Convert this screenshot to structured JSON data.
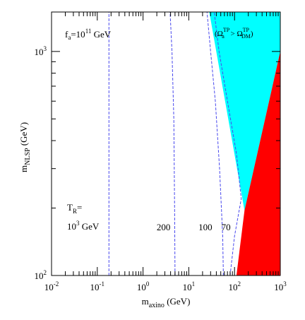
{
  "chart_data": {
    "type": "line",
    "title": "",
    "xlabel": {
      "main": "m",
      "sub": "axino",
      "unit": " (GeV)"
    },
    "ylabel": {
      "main": "m",
      "sub": "NLSP",
      "unit": " (GeV)"
    },
    "x_scale": "log",
    "y_scale": "log",
    "xlim": [
      0.01,
      1000
    ],
    "ylim": [
      100,
      1500
    ],
    "x_ticks": [
      {
        "value": 0.01,
        "base": "10",
        "exp": "-2"
      },
      {
        "value": 0.1,
        "base": "10",
        "exp": "-1"
      },
      {
        "value": 1,
        "base": "10",
        "exp": "0"
      },
      {
        "value": 10,
        "base": "10",
        "exp": "1"
      },
      {
        "value": 100,
        "base": "10",
        "exp": "2"
      },
      {
        "value": 1000,
        "base": "10",
        "exp": "3"
      }
    ],
    "y_ticks": [
      {
        "value": 100,
        "base": "10",
        "exp": "2"
      },
      {
        "value": 1000,
        "base": "10",
        "exp": "3"
      }
    ],
    "grid": false,
    "annotations": {
      "fa": {
        "main": "f",
        "sub": "a",
        "mid": "=10",
        "sup": "11",
        "tail": " GeV"
      },
      "tr_line1": {
        "main": "T",
        "sub": "R",
        "tail": "="
      },
      "tr_line2": {
        "main": "10",
        "sup": "3",
        "tail": " GeV"
      },
      "omega": {
        "open": "(",
        "o1": "Ω",
        "sup1": "TP",
        "sub1": "a",
        "gt": " > ",
        "o2": "Ω",
        "sup2": "TP",
        "sub2": "DM",
        "close": ")"
      },
      "curve_labels": [
        {
          "text": "200",
          "x": 2.8,
          "y": 165
        },
        {
          "text": "100",
          "x": 23,
          "y": 165
        },
        {
          "text": "70",
          "x": 65,
          "y": 165
        }
      ]
    },
    "regions": [
      {
        "name": "overclosure-region",
        "color": "#00ffff",
        "points": [
          [
            28,
            1500
          ],
          [
            1000,
            1500
          ],
          [
            1000,
            1000
          ],
          [
            165,
            195
          ]
        ]
      },
      {
        "name": "excluded-region",
        "color": "#ff0000",
        "points": [
          [
            110,
            100
          ],
          [
            1000,
            100
          ],
          [
            1000,
            1000
          ],
          [
            165,
            195
          ]
        ]
      }
    ],
    "series": [
      {
        "color": "#4a4aee",
        "dash": "4,2",
        "points": [
          [
            0.18,
            100
          ],
          [
            0.18,
            1500
          ]
        ]
      },
      {
        "color": "#4a4aee",
        "dash": "4,2",
        "points": [
          [
            5.0,
            100
          ],
          [
            4.9,
            200
          ],
          [
            4.7,
            500
          ],
          [
            4.3,
            1000
          ],
          [
            3.9,
            1500
          ]
        ]
      },
      {
        "color": "#4a4aee",
        "dash": "4,2",
        "points": [
          [
            57,
            100
          ],
          [
            55,
            150
          ],
          [
            47,
            300
          ],
          [
            38,
            600
          ],
          [
            30,
            1000
          ],
          [
            25,
            1500
          ]
        ]
      },
      {
        "color": "#4a4aee",
        "dash": "4,2",
        "points": [
          [
            80,
            100
          ],
          [
            100,
            150
          ],
          [
            140,
            220
          ],
          [
            110,
            350
          ],
          [
            70,
            600
          ],
          [
            46,
            1000
          ],
          [
            36,
            1500
          ]
        ]
      }
    ]
  }
}
